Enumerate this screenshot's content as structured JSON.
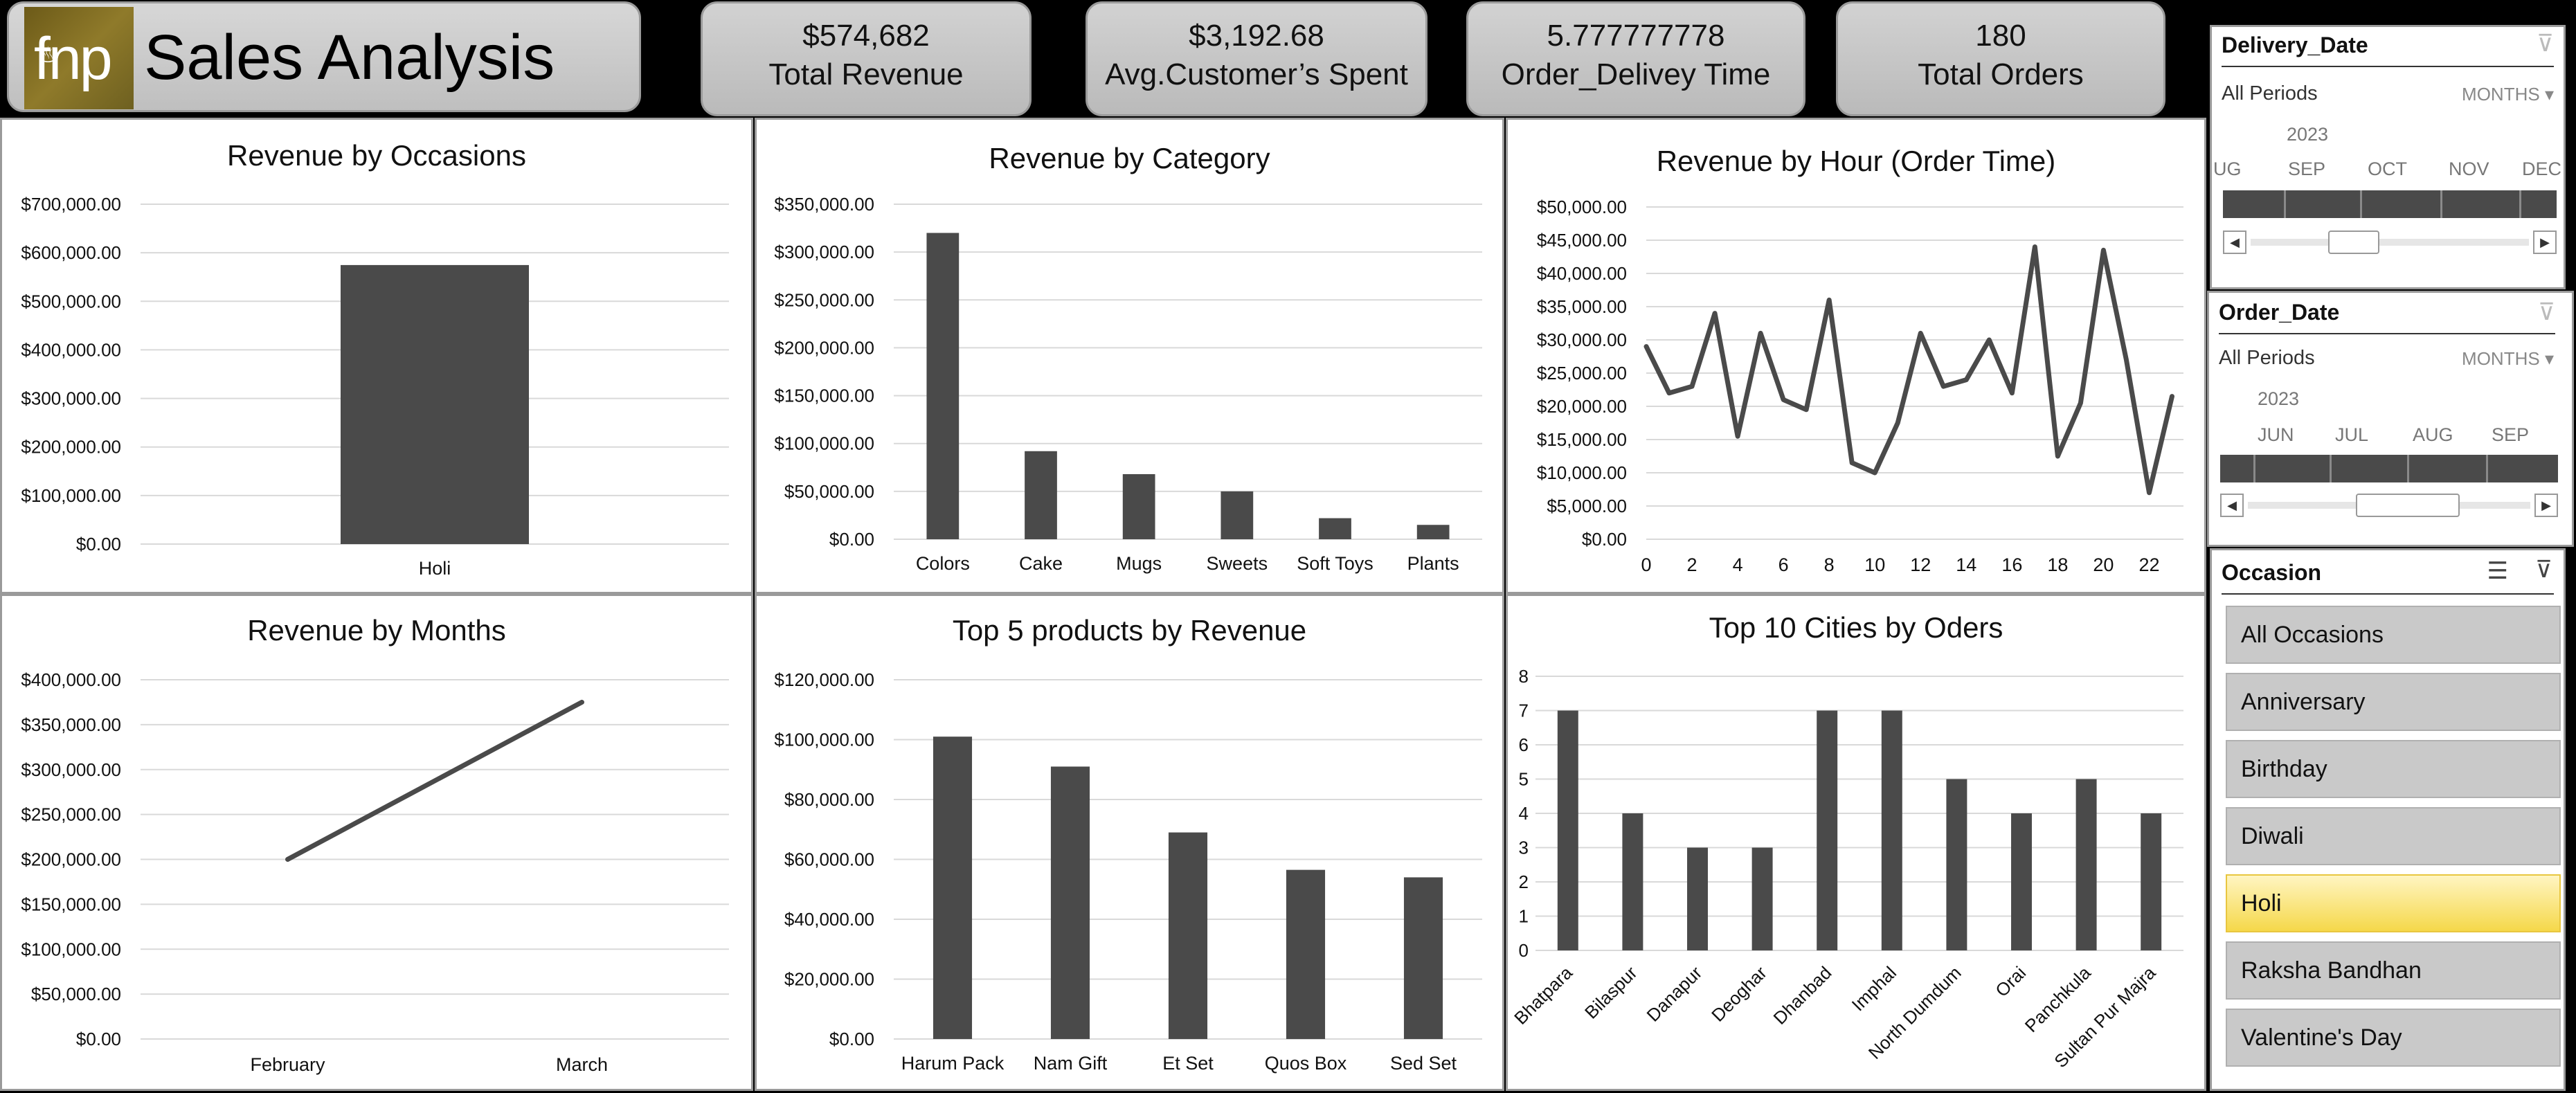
{
  "header": {
    "logo_text": "fnp",
    "title": "Sales Analysis"
  },
  "kpis": [
    {
      "value": "$574,682",
      "label": "Total Revenue"
    },
    {
      "value": "$3,192.68",
      "label": "Avg.Customer’s Spent"
    },
    {
      "value": "5.777777778",
      "label": "Order_Delivey Time"
    },
    {
      "value": "180",
      "label": "Total Orders"
    }
  ],
  "chart_data": [
    {
      "id": "occasions",
      "type": "bar",
      "title": "Revenue by Occasions",
      "categories": [
        "Holi"
      ],
      "values": [
        574682
      ],
      "ylim": [
        0,
        700000
      ],
      "yticks": [
        0,
        100000,
        200000,
        300000,
        400000,
        500000,
        600000,
        700000
      ],
      "yformat": "currency2",
      "grid": true
    },
    {
      "id": "category",
      "type": "bar",
      "title": "Revenue by Category",
      "categories": [
        "Colors",
        "Cake",
        "Mugs",
        "Sweets",
        "Soft Toys",
        "Plants"
      ],
      "values": [
        320000,
        92000,
        68000,
        50000,
        22000,
        15000
      ],
      "ylim": [
        0,
        350000
      ],
      "yticks": [
        0,
        50000,
        100000,
        150000,
        200000,
        250000,
        300000,
        350000
      ],
      "yformat": "currency2",
      "grid": true
    },
    {
      "id": "hour",
      "type": "line",
      "title": "Revenue by Hour (Order Time)",
      "x": [
        0,
        1,
        2,
        3,
        4,
        5,
        6,
        7,
        8,
        9,
        10,
        11,
        12,
        13,
        14,
        15,
        16,
        17,
        18,
        19,
        20,
        21,
        22,
        23
      ],
      "values": [
        29000,
        22000,
        23000,
        34000,
        15500,
        31000,
        21000,
        19500,
        36000,
        11500,
        10000,
        17500,
        31000,
        23000,
        24000,
        30000,
        22000,
        44000,
        12500,
        20500,
        43500,
        27000,
        7000,
        21500
      ],
      "xticks": [
        0,
        2,
        4,
        6,
        8,
        10,
        12,
        14,
        16,
        18,
        20,
        22
      ],
      "ylim": [
        0,
        50000
      ],
      "yticks": [
        0,
        5000,
        10000,
        15000,
        20000,
        25000,
        30000,
        35000,
        40000,
        45000,
        50000
      ],
      "yformat": "currency2",
      "grid": true
    },
    {
      "id": "months",
      "type": "line",
      "title": "Revenue by Months",
      "categories": [
        "February",
        "March"
      ],
      "values": [
        200000,
        375000
      ],
      "ylim": [
        0,
        400000
      ],
      "yticks": [
        0,
        50000,
        100000,
        150000,
        200000,
        250000,
        300000,
        350000,
        400000
      ],
      "yformat": "currency2",
      "grid": true
    },
    {
      "id": "products",
      "type": "bar",
      "title": "Top 5 products by Revenue",
      "categories": [
        "Harum Pack",
        "Nam Gift",
        "Et Set",
        "Quos Box",
        "Sed Set"
      ],
      "values": [
        101000,
        91000,
        69000,
        56500,
        54000
      ],
      "ylim": [
        0,
        120000
      ],
      "yticks": [
        0,
        20000,
        40000,
        60000,
        80000,
        100000,
        120000
      ],
      "yformat": "currency2",
      "grid": true
    },
    {
      "id": "cities",
      "type": "bar",
      "title": "Top 10 Cities by Oders",
      "categories": [
        "Bhatpara",
        "Bilaspur",
        "Danapur",
        "Deoghar",
        "Dhanbad",
        "Imphal",
        "North Dumdum",
        "Orai",
        "Panchkula",
        "Sultan Pur Majra"
      ],
      "values": [
        7,
        4,
        3,
        3,
        7,
        7,
        5,
        4,
        5,
        4
      ],
      "ylim": [
        0,
        8
      ],
      "yticks": [
        0,
        1,
        2,
        3,
        4,
        5,
        6,
        7,
        8
      ],
      "yformat": "int",
      "grid": true
    }
  ],
  "slicers": {
    "delivery": {
      "title": "Delivery_Date",
      "period": "All Periods",
      "level": "MONTHS",
      "year": "2023",
      "months": [
        "UG",
        "SEP",
        "OCT",
        "NOV",
        "DEC"
      ]
    },
    "order": {
      "title": "Order_Date",
      "period": "All Periods",
      "level": "MONTHS",
      "year": "2023",
      "months": [
        "JUN",
        "JUL",
        "AUG",
        "SEP"
      ]
    },
    "occasion": {
      "title": "Occasion",
      "items": [
        "All Occasions",
        "Anniversary",
        "Birthday",
        "Diwali",
        "Holi",
        "Raksha Bandhan",
        "Valentine's Day"
      ],
      "selected": "Holi"
    }
  },
  "colors": {
    "bar": "#4a4a4a",
    "grid": "#d9d9d9",
    "selected": "#f5d84a"
  }
}
